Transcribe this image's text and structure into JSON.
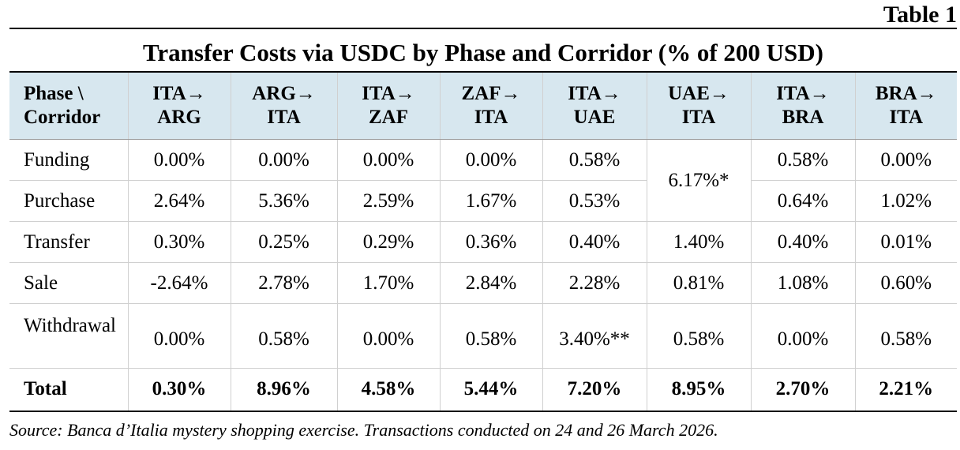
{
  "table_label": "Table 1",
  "title": "Transfer Costs via USDC by Phase and Corridor (% of 200 USD)",
  "header": {
    "phase_corridor_line1": "Phase \\",
    "phase_corridor_line2": "Corridor",
    "corridors": [
      {
        "line1": "ITA→",
        "line2": "ARG"
      },
      {
        "line1": "ARG→",
        "line2": "ITA"
      },
      {
        "line1": "ITA→",
        "line2": "ZAF"
      },
      {
        "line1": "ZAF→",
        "line2": "ITA"
      },
      {
        "line1": "ITA→",
        "line2": "UAE"
      },
      {
        "line1": "UAE→",
        "line2": "ITA"
      },
      {
        "line1": "ITA→",
        "line2": "BRA"
      },
      {
        "line1": "BRA→",
        "line2": "ITA"
      }
    ]
  },
  "rows": {
    "funding": {
      "label": "Funding",
      "values": [
        "0.00%",
        "0.00%",
        "0.00%",
        "0.00%",
        "0.58%",
        "0.58%",
        "0.00%"
      ]
    },
    "purchase": {
      "label": "Purchase",
      "values": [
        "2.64%",
        "5.36%",
        "2.59%",
        "1.67%",
        "0.53%",
        "0.64%",
        "1.02%"
      ]
    },
    "uae_ita_funding_purchase": "6.17%*",
    "transfer": {
      "label": "Transfer",
      "values": [
        "0.30%",
        "0.25%",
        "0.29%",
        "0.36%",
        "0.40%",
        "1.40%",
        "0.40%",
        "0.01%"
      ]
    },
    "sale": {
      "label": "Sale",
      "values": [
        "-2.64%",
        "2.78%",
        "1.70%",
        "2.84%",
        "2.28%",
        "0.81%",
        "1.08%",
        "0.60%"
      ]
    },
    "withdrawal": {
      "label": "Withdrawal",
      "values": [
        "0.00%",
        "0.58%",
        "0.00%",
        "0.58%",
        "3.40%**",
        "0.58%",
        "0.00%",
        "0.58%"
      ]
    },
    "total": {
      "label": "Total",
      "values": [
        "0.30%",
        "8.96%",
        "4.58%",
        "5.44%",
        "7.20%",
        "8.95%",
        "2.70%",
        "2.21%"
      ]
    }
  },
  "source_note": "Source: Banca d’Italia mystery shopping exercise. Transactions conducted on 24 and 26 March 2026."
}
